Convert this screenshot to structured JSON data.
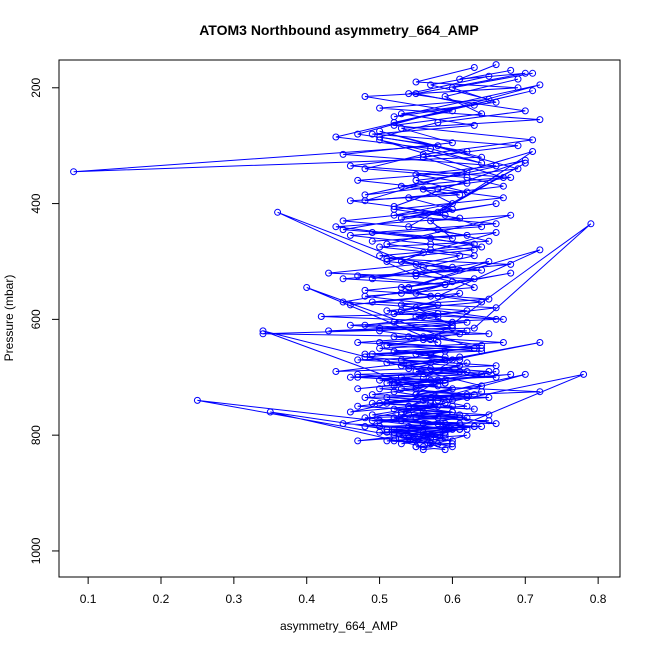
{
  "chart_data": {
    "type": "line",
    "title": "ATOM3 Northbound asymmetry_664_AMP",
    "xlabel": "asymmetry_664_AMP",
    "ylabel": "Pressure (mbar)",
    "xlim": [
      0.06,
      0.83
    ],
    "ylim": [
      1045,
      152
    ],
    "y_inverted": true,
    "x_ticks": [
      0.1,
      0.2,
      0.3,
      0.4,
      0.5,
      0.6,
      0.7,
      0.8
    ],
    "x_tick_labels": [
      "0.1",
      "0.2",
      "0.3",
      "0.4",
      "0.5",
      "0.6",
      "0.7",
      "0.8"
    ],
    "y_ticks": [
      200,
      400,
      600,
      800,
      1000
    ],
    "y_tick_labels": [
      "200",
      "400",
      "600",
      "800",
      "1000"
    ],
    "grid": false,
    "marker": "open-circle",
    "series": [
      {
        "color": "#0000ff",
        "x": [
          0.66,
          0.61,
          0.7,
          0.55,
          0.63,
          0.52,
          0.72,
          0.47,
          0.58,
          0.08,
          0.64,
          0.5,
          0.69,
          0.55,
          0.62,
          0.48,
          0.71,
          0.59,
          0.53,
          0.66,
          0.45,
          0.6,
          0.57,
          0.68,
          0.51,
          0.63,
          0.56,
          0.49,
          0.65,
          0.54,
          0.72,
          0.58,
          0.46,
          0.61,
          0.52,
          0.67,
          0.55,
          0.6,
          0.43,
          0.63,
          0.79,
          0.57,
          0.5,
          0.64,
          0.48,
          0.59,
          0.53,
          0.66,
          0.44,
          0.61,
          0.56,
          0.62,
          0.51,
          0.68,
          0.47,
          0.58,
          0.55,
          0.64,
          0.34,
          0.6,
          0.52,
          0.57,
          0.49,
          0.63,
          0.54,
          0.7,
          0.46,
          0.59,
          0.53,
          0.62,
          0.5,
          0.66,
          0.56,
          0.48,
          0.61,
          0.55,
          0.65,
          0.52,
          0.58,
          0.78,
          0.45,
          0.6,
          0.25,
          0.54,
          0.63,
          0.5,
          0.57,
          0.47,
          0.61,
          0.53,
          0.59,
          0.35,
          0.56,
          0.62,
          0.51,
          0.58,
          0.54,
          0.6,
          0.56,
          0.57,
          0.59,
          0.55
        ],
        "y": [
          160,
          185,
          175,
          210,
          230,
          250,
          195,
          280,
          300,
          345,
          320,
          275,
          340,
          360,
          380,
          395,
          310,
          410,
          425,
          400,
          445,
          460,
          430,
          420,
          470,
          490,
          510,
          530,
          500,
          545,
          480,
          560,
          575,
          555,
          590,
          600,
          580,
          610,
          620,
          615,
          435,
          635,
          640,
          650,
          660,
          655,
          670,
          680,
          690,
          665,
          700,
          675,
          710,
          695,
          720,
          705,
          730,
          715,
          620,
          740,
          725,
          735,
          745,
          755,
          750,
          695,
          760,
          745,
          765,
          770,
          775,
          780,
          760,
          785,
          790,
          770,
          775,
          795,
          800,
          695,
          780,
          790,
          740,
          805,
          785,
          795,
          800,
          810,
          790,
          815,
          805,
          760,
          820,
          800,
          810,
          815,
          805,
          820,
          825,
          815,
          825,
          820
        ]
      },
      {
        "color": "#0000ff",
        "x": [
          0.63,
          0.55,
          0.69,
          0.48,
          0.6,
          0.52,
          0.71,
          0.44,
          0.57,
          0.64,
          0.5,
          0.67,
          0.53,
          0.61,
          0.46,
          0.58,
          0.7,
          0.54,
          0.62,
          0.49,
          0.66,
          0.56,
          0.51,
          0.64,
          0.47,
          0.59,
          0.53,
          0.68,
          0.45,
          0.62,
          0.55,
          0.6,
          0.5,
          0.65,
          0.52,
          0.58,
          0.4,
          0.63,
          0.48,
          0.57,
          0.72,
          0.54,
          0.61,
          0.46,
          0.59,
          0.52,
          0.66,
          0.55,
          0.49,
          0.62,
          0.57,
          0.51,
          0.64,
          0.47,
          0.6,
          0.54,
          0.58,
          0.53,
          0.61,
          0.5,
          0.59,
          0.56,
          0.52,
          0.55
        ],
        "y": [
          165,
          190,
          200,
          215,
          240,
          260,
          205,
          285,
          305,
          330,
          290,
          355,
          370,
          385,
          395,
          415,
          330,
          440,
          455,
          465,
          450,
          485,
          500,
          515,
          525,
          540,
          555,
          520,
          570,
          585,
          595,
          605,
          615,
          625,
          630,
          640,
          545,
          650,
          665,
          675,
          640,
          685,
          690,
          700,
          705,
          715,
          690,
          720,
          730,
          735,
          740,
          745,
          725,
          750,
          760,
          765,
          770,
          775,
          780,
          785,
          790,
          795,
          800,
          810
        ]
      },
      {
        "color": "#0000ff",
        "x": [
          0.68,
          0.57,
          0.65,
          0.5,
          0.72,
          0.53,
          0.6,
          0.45,
          0.66,
          0.55,
          0.62,
          0.48,
          0.7,
          0.52,
          0.59,
          0.64,
          0.46,
          0.57,
          0.63,
          0.51,
          0.68,
          0.55,
          0.6,
          0.48,
          0.65,
          0.53,
          0.58,
          0.42,
          0.62,
          0.5,
          0.56,
          0.64,
          0.52,
          0.59,
          0.47,
          0.61,
          0.55,
          0.66,
          0.5,
          0.58,
          0.53,
          0.63,
          0.48,
          0.57,
          0.6,
          0.52,
          0.65,
          0.55,
          0.49,
          0.59,
          0.54,
          0.62,
          0.51,
          0.57,
          0.53,
          0.6,
          0.56,
          0.58
        ],
        "y": [
          170,
          195,
          220,
          235,
          255,
          270,
          295,
          315,
          335,
          350,
          365,
          385,
          325,
          405,
          420,
          440,
          455,
          470,
          480,
          495,
          505,
          520,
          535,
          550,
          565,
          575,
          590,
          595,
          605,
          620,
          630,
          645,
          655,
          665,
          670,
          680,
          690,
          700,
          705,
          715,
          720,
          730,
          735,
          745,
          750,
          755,
          765,
          770,
          775,
          780,
          785,
          790,
          795,
          800,
          805,
          810,
          800,
          815
        ]
      },
      {
        "color": "#0000ff",
        "x": [
          0.71,
          0.6,
          0.66,
          0.53,
          0.63,
          0.49,
          0.69,
          0.56,
          0.62,
          0.47,
          0.58,
          0.67,
          0.52,
          0.61,
          0.44,
          0.57,
          0.64,
          0.5,
          0.6,
          0.55,
          0.36,
          0.63,
          0.48,
          0.58,
          0.53,
          0.66,
          0.46,
          0.61,
          0.56,
          0.51,
          0.64,
          0.49,
          0.59,
          0.54,
          0.62,
          0.47,
          0.57,
          0.52,
          0.6,
          0.55,
          0.65,
          0.5,
          0.58,
          0.53,
          0.61,
          0.48,
          0.56,
          0.63,
          0.51,
          0.59,
          0.54,
          0.57,
          0.52,
          0.6,
          0.55
        ],
        "y": [
          175,
          200,
          225,
          245,
          265,
          280,
          300,
          320,
          345,
          360,
          375,
          390,
          410,
          425,
          440,
          460,
          475,
          490,
          510,
          525,
          415,
          545,
          560,
          575,
          585,
          600,
          610,
          625,
          635,
          645,
          655,
          660,
          670,
          680,
          690,
          695,
          705,
          710,
          720,
          730,
          735,
          745,
          750,
          760,
          765,
          770,
          780,
          785,
          790,
          795,
          800,
          805,
          810,
          815,
          820
        ]
      },
      {
        "color": "#0000ff",
        "x": [
          0.65,
          0.54,
          0.7,
          0.58,
          0.5,
          0.62,
          0.46,
          0.68,
          0.56,
          0.6,
          0.52,
          0.66,
          0.49,
          0.63,
          0.57,
          0.53,
          0.61,
          0.45,
          0.59,
          0.55,
          0.64,
          0.51,
          0.58,
          0.48,
          0.62,
          0.54,
          0.67,
          0.5,
          0.57,
          0.6,
          0.53,
          0.65,
          0.47,
          0.59,
          0.55,
          0.72,
          0.51,
          0.58,
          0.62,
          0.54,
          0.49,
          0.61,
          0.56,
          0.64,
          0.52,
          0.59,
          0.55,
          0.57
        ],
        "y": [
          180,
          210,
          240,
          260,
          285,
          310,
          335,
          355,
          375,
          400,
          420,
          435,
          450,
          470,
          480,
          500,
          515,
          530,
          540,
          555,
          570,
          585,
          595,
          610,
          620,
          630,
          640,
          650,
          660,
          670,
          680,
          690,
          700,
          710,
          715,
          725,
          735,
          740,
          750,
          755,
          765,
          770,
          780,
          785,
          790,
          800,
          805,
          815
        ]
      },
      {
        "color": "#0000ff",
        "x": [
          0.69,
          0.59,
          0.64,
          0.52,
          0.71,
          0.56,
          0.48,
          0.62,
          0.67,
          0.54,
          0.6,
          0.45,
          0.58,
          0.65,
          0.5,
          0.61,
          0.55,
          0.43,
          0.63,
          0.53,
          0.57,
          0.49,
          0.66,
          0.56,
          0.52,
          0.6,
          0.34,
          0.58,
          0.47,
          0.63,
          0.55,
          0.61,
          0.51,
          0.57,
          0.64,
          0.53,
          0.59,
          0.5,
          0.62,
          0.56,
          0.54,
          0.6,
          0.52,
          0.58
        ],
        "y": [
          185,
          215,
          245,
          265,
          290,
          315,
          340,
          355,
          370,
          390,
          410,
          430,
          445,
          465,
          475,
          490,
          505,
          520,
          530,
          545,
          560,
          570,
          580,
          595,
          605,
          615,
          625,
          630,
          640,
          650,
          660,
          670,
          675,
          685,
          695,
          700,
          710,
          720,
          730,
          740,
          750,
          760,
          770,
          780
        ]
      }
    ]
  }
}
